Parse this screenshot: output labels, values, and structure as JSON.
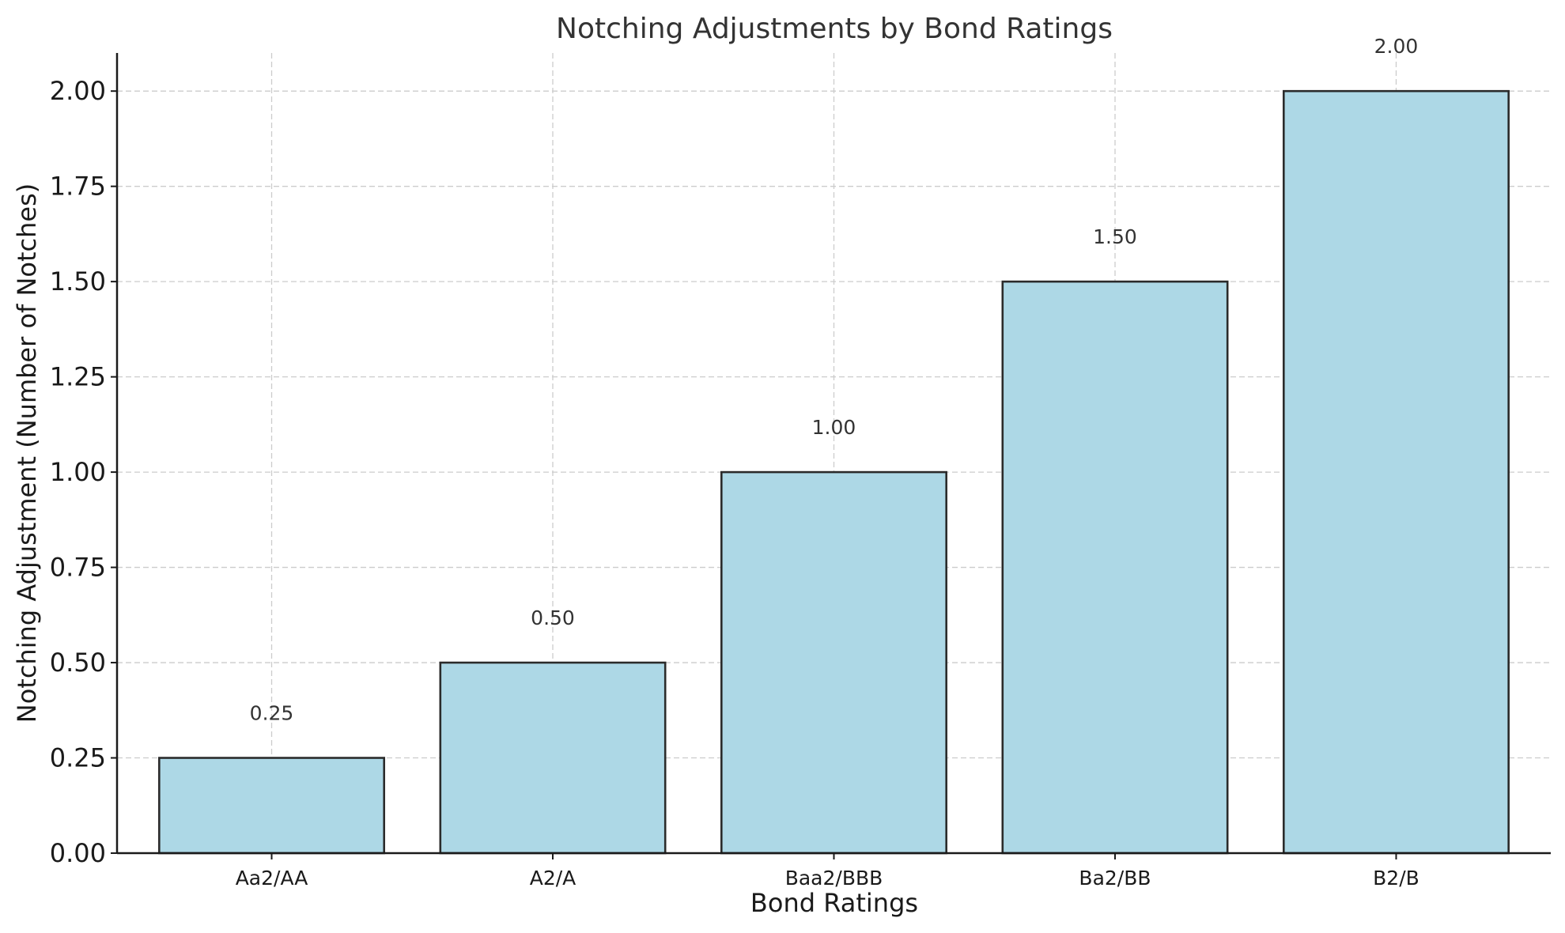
{
  "chart_data": {
    "type": "bar",
    "title": "Notching Adjustments by Bond Ratings",
    "xlabel": "Bond Ratings",
    "ylabel": "Notching Adjustment (Number of Notches)",
    "categories": [
      "Aa2/AA",
      "A2/A",
      "Baa2/BBB",
      "Ba2/BB",
      "B2/B"
    ],
    "values": [
      0.25,
      0.5,
      1.0,
      1.5,
      2.0
    ],
    "data_labels": [
      "0.25",
      "0.50",
      "1.00",
      "1.50",
      "2.00"
    ],
    "ylim": [
      0,
      2.1
    ],
    "yticks": [
      0,
      0.25,
      0.5,
      0.75,
      1.0,
      1.25,
      1.5,
      1.75,
      2.0
    ],
    "ytick_labels": [
      "0.00",
      "0.25",
      "0.50",
      "0.75",
      "1.00",
      "1.25",
      "1.50",
      "1.75",
      "2.00"
    ],
    "grid": true,
    "bar_color": "#add8e6",
    "bar_edge_color": "#2b2b2b"
  }
}
